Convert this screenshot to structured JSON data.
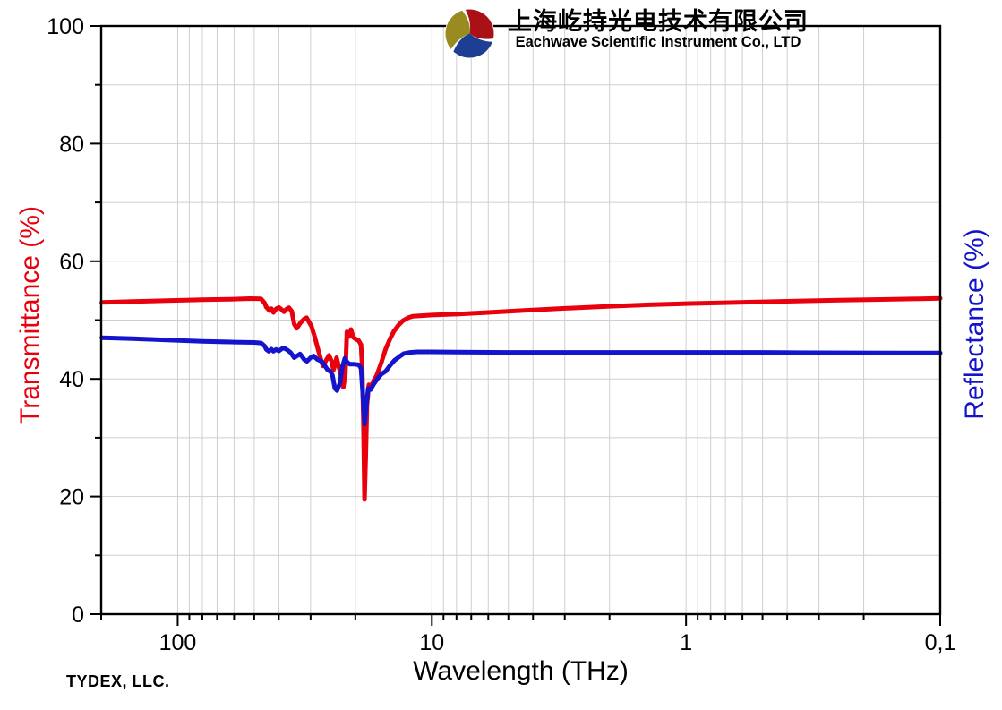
{
  "header": {
    "company_name_cn": "上海屹持光电技术有限公司",
    "company_name_en": "Eachwave Scientific Instrument Co., LTD",
    "logo": {
      "red": "#A91117",
      "olive": "#998B20",
      "blue": "#1C3F94"
    }
  },
  "footer": {
    "credit": "TYDEX, LLC."
  },
  "chart_data": {
    "type": "line",
    "x_axis": {
      "label": "Wavelength (THz)",
      "scale": "log",
      "reversed": true,
      "min": 0.1,
      "max": 200,
      "major_ticks": [
        100,
        10,
        1,
        0.1
      ],
      "major_tick_labels": [
        "100",
        "10",
        "1",
        "0,1"
      ]
    },
    "y_axis_left": {
      "label": "Transmittance (%)",
      "color": "#E8000D",
      "min": 0,
      "max": 100,
      "major_step": 20,
      "minor_step": 10,
      "tick_labels": [
        "0",
        "20",
        "40",
        "60",
        "80",
        "100"
      ]
    },
    "y_axis_right": {
      "label": "Reflectance (%)",
      "color": "#1414CC"
    },
    "grid": {
      "show": true,
      "color": "#CFCFCF",
      "horizontal_step": 10
    },
    "series": [
      {
        "name": "Transmittance",
        "axis": "left",
        "color": "#E8000D",
        "points": [
          [
            199,
            53.0
          ],
          [
            150,
            53.15
          ],
          [
            110,
            53.3
          ],
          [
            80,
            53.45
          ],
          [
            62,
            53.55
          ],
          [
            52,
            53.65
          ],
          [
            47,
            53.6
          ],
          [
            45.5,
            52.9
          ],
          [
            44.8,
            52.2
          ],
          [
            43.5,
            51.6
          ],
          [
            42.8,
            51.95
          ],
          [
            42,
            51.3
          ],
          [
            41,
            51.9
          ],
          [
            40,
            52.15
          ],
          [
            39,
            51.8
          ],
          [
            38.2,
            51.4
          ],
          [
            37.2,
            51.9
          ],
          [
            36.5,
            52.1
          ],
          [
            35.6,
            51.5
          ],
          [
            34.8,
            49.3
          ],
          [
            34,
            48.6
          ],
          [
            32.8,
            49.6
          ],
          [
            31.8,
            50.2
          ],
          [
            31.1,
            50.4
          ],
          [
            29.8,
            49.0
          ],
          [
            29,
            47.4
          ],
          [
            28,
            44.9
          ],
          [
            27.2,
            43.0
          ],
          [
            26.8,
            42.2
          ],
          [
            26.2,
            43.0
          ],
          [
            25.4,
            44.0
          ],
          [
            24.8,
            43.0
          ],
          [
            24.4,
            41.5
          ],
          [
            24,
            42.5
          ],
          [
            23.7,
            43.6
          ],
          [
            23.1,
            41.6
          ],
          [
            22.7,
            40.3
          ],
          [
            22.3,
            38.6
          ],
          [
            21.9,
            40.8
          ],
          [
            21.6,
            48.0
          ],
          [
            21.2,
            47.2
          ],
          [
            20.8,
            48.4
          ],
          [
            20.4,
            47.1
          ],
          [
            20,
            46.8
          ],
          [
            19.4,
            46.5
          ],
          [
            19,
            45.8
          ],
          [
            18.8,
            42.0
          ],
          [
            18.6,
            33.0
          ],
          [
            18.4,
            19.5
          ],
          [
            18.2,
            27.0
          ],
          [
            18,
            35.5
          ],
          [
            17.7,
            39.0
          ],
          [
            17.4,
            38.5
          ],
          [
            17,
            39.6
          ],
          [
            16.5,
            40.6
          ],
          [
            15.8,
            42.8
          ],
          [
            15.2,
            45.1
          ],
          [
            14.6,
            46.8
          ],
          [
            14.1,
            48.1
          ],
          [
            13.5,
            49.2
          ],
          [
            13,
            49.9
          ],
          [
            12.4,
            50.4
          ],
          [
            11.9,
            50.65
          ],
          [
            11,
            50.75
          ],
          [
            10,
            50.85
          ],
          [
            8,
            51.0
          ],
          [
            6,
            51.3
          ],
          [
            4.5,
            51.6
          ],
          [
            3,
            52.0
          ],
          [
            2,
            52.35
          ],
          [
            1.4,
            52.6
          ],
          [
            1,
            52.8
          ],
          [
            0.7,
            52.95
          ],
          [
            0.5,
            53.1
          ],
          [
            0.35,
            53.25
          ],
          [
            0.25,
            53.4
          ],
          [
            0.17,
            53.5
          ],
          [
            0.12,
            53.62
          ],
          [
            0.1,
            53.7
          ]
        ]
      },
      {
        "name": "Reflectance",
        "axis": "right",
        "color": "#1414CC",
        "points": [
          [
            199,
            47.0
          ],
          [
            150,
            46.85
          ],
          [
            110,
            46.6
          ],
          [
            80,
            46.4
          ],
          [
            60,
            46.25
          ],
          [
            50,
            46.2
          ],
          [
            47,
            46.1
          ],
          [
            45.5,
            45.6
          ],
          [
            44.8,
            45.0
          ],
          [
            43.8,
            44.7
          ],
          [
            42.8,
            45.05
          ],
          [
            42,
            44.7
          ],
          [
            41,
            45.0
          ],
          [
            40,
            44.75
          ],
          [
            39,
            45.1
          ],
          [
            38.2,
            45.25
          ],
          [
            37,
            44.9
          ],
          [
            36,
            44.5
          ],
          [
            34.8,
            43.6
          ],
          [
            33.8,
            43.95
          ],
          [
            33,
            44.25
          ],
          [
            31.8,
            43.3
          ],
          [
            31,
            43.0
          ],
          [
            30,
            43.6
          ],
          [
            29.2,
            43.9
          ],
          [
            28.2,
            43.3
          ],
          [
            27.2,
            43.0
          ],
          [
            26.5,
            42.4
          ],
          [
            25.8,
            41.6
          ],
          [
            25,
            41.2
          ],
          [
            24.6,
            40.6
          ],
          [
            24.1,
            38.4
          ],
          [
            23.6,
            38.0
          ],
          [
            23,
            39.3
          ],
          [
            22.5,
            42.0
          ],
          [
            22,
            43.5
          ],
          [
            21.5,
            42.8
          ],
          [
            21,
            42.5
          ],
          [
            20.2,
            42.5
          ],
          [
            19.4,
            42.4
          ],
          [
            19,
            41.8
          ],
          [
            18.7,
            37.5
          ],
          [
            18.4,
            32.3
          ],
          [
            18.1,
            35.5
          ],
          [
            17.8,
            38.4
          ],
          [
            17.4,
            38.2
          ],
          [
            17,
            39.0
          ],
          [
            16.4,
            40.0
          ],
          [
            15.8,
            40.8
          ],
          [
            15.2,
            41.3
          ],
          [
            14.6,
            42.3
          ],
          [
            14,
            43.2
          ],
          [
            13.4,
            43.8
          ],
          [
            12.9,
            44.3
          ],
          [
            12.2,
            44.5
          ],
          [
            11.4,
            44.6
          ],
          [
            10,
            44.6
          ],
          [
            8,
            44.55
          ],
          [
            5,
            44.5
          ],
          [
            3,
            44.5
          ],
          [
            2,
            44.5
          ],
          [
            1,
            44.5
          ],
          [
            0.5,
            44.5
          ],
          [
            0.3,
            44.45
          ],
          [
            0.15,
            44.4
          ],
          [
            0.1,
            44.4
          ]
        ]
      }
    ]
  }
}
